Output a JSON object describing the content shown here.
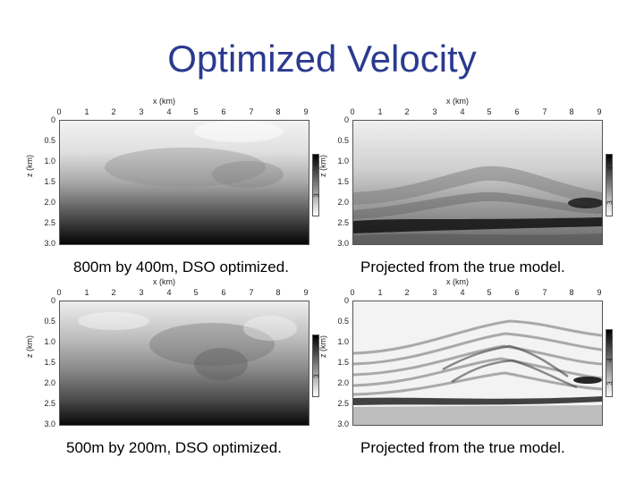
{
  "slide_title": "Optimized Velocity",
  "axes": {
    "x_label": "x (km)",
    "y_label": "z (km)",
    "x_ticks": [
      "0",
      "1",
      "2",
      "3",
      "4",
      "5",
      "6",
      "7",
      "8",
      "9"
    ],
    "y_ticks": [
      "0",
      "0.5",
      "1.0",
      "1.5",
      "2.0",
      "2.5",
      "3.0"
    ]
  },
  "panels": [
    {
      "caption": "800m by 400m, DSO optimized.",
      "colorbar_ticks": [
        "4",
        "3"
      ]
    },
    {
      "caption": "Projected from the true model.",
      "colorbar_ticks": [
        "4",
        "3"
      ]
    },
    {
      "caption": "500m by 200m, DSO optimized.",
      "colorbar_ticks": [
        "4",
        "3"
      ]
    },
    {
      "caption": "Projected from the true model.",
      "colorbar_ticks": [
        "5",
        "4",
        "3"
      ]
    }
  ]
}
